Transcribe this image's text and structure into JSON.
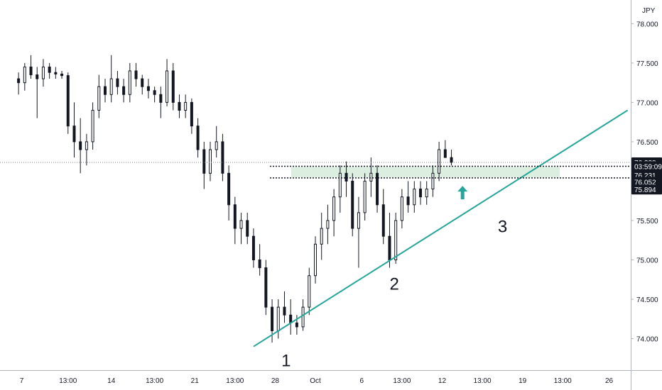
{
  "chart_data": {
    "type": "candlestick",
    "currency": "JPY",
    "ylim": [
      73.6,
      78.3
    ],
    "y_ticks": [
      74.0,
      74.5,
      75.0,
      75.5,
      76.0,
      76.5,
      77.0,
      77.5,
      78.0
    ],
    "y_tick_labels": [
      "74.000",
      "74.500",
      "75.000",
      "75.500",
      "76.000",
      "76.500",
      "77.000",
      "77.500",
      "78.000"
    ],
    "x_tick_labels": [
      "7",
      "13:00",
      "14",
      "13:00",
      "21",
      "13:00",
      "28",
      "Oct",
      "6",
      "13:00",
      "12",
      "13:00",
      "19",
      "13:00",
      "26"
    ],
    "x_tick_positions": [
      0.5,
      8,
      15,
      22,
      28.5,
      35,
      41.5,
      48,
      55.5,
      62,
      68.5,
      75,
      81.5,
      88,
      95.5
    ],
    "x_range": [
      -3,
      99
    ],
    "candles": [
      [
        77.3,
        77.38,
        77.1,
        77.25
      ],
      [
        77.25,
        77.5,
        77.15,
        77.45
      ],
      [
        77.45,
        77.6,
        77.3,
        77.35
      ],
      [
        77.35,
        77.45,
        76.8,
        77.3
      ],
      [
        77.3,
        77.55,
        77.2,
        77.45
      ],
      [
        77.45,
        77.5,
        77.3,
        77.38
      ],
      [
        77.38,
        77.45,
        77.3,
        77.36
      ],
      [
        77.36,
        77.4,
        77.3,
        77.34
      ],
      [
        77.34,
        77.38,
        76.6,
        76.7
      ],
      [
        76.7,
        77.0,
        76.3,
        76.5
      ],
      [
        76.5,
        76.8,
        76.1,
        76.4
      ],
      [
        76.4,
        76.6,
        76.2,
        76.5
      ],
      [
        76.5,
        77.0,
        76.4,
        76.9
      ],
      [
        76.9,
        77.35,
        76.8,
        77.2
      ],
      [
        77.2,
        77.3,
        77.0,
        77.1
      ],
      [
        77.1,
        77.6,
        77.0,
        77.3
      ],
      [
        77.3,
        77.4,
        77.1,
        77.2
      ],
      [
        77.2,
        77.3,
        77.0,
        77.1
      ],
      [
        77.1,
        77.5,
        77.0,
        77.4
      ],
      [
        77.4,
        77.5,
        77.2,
        77.3
      ],
      [
        77.3,
        77.35,
        77.1,
        77.2
      ],
      [
        77.2,
        77.3,
        77.05,
        77.15
      ],
      [
        77.15,
        77.2,
        77.0,
        77.1
      ],
      [
        77.1,
        77.2,
        76.8,
        77.0
      ],
      [
        77.0,
        77.55,
        76.95,
        77.4
      ],
      [
        77.4,
        77.5,
        76.9,
        77.0
      ],
      [
        77.0,
        77.1,
        76.8,
        76.9
      ],
      [
        76.9,
        77.1,
        76.8,
        77.0
      ],
      [
        77.0,
        77.05,
        76.6,
        76.7
      ],
      [
        76.7,
        76.8,
        76.3,
        76.4
      ],
      [
        76.4,
        76.5,
        75.9,
        76.1
      ],
      [
        76.1,
        76.5,
        76.0,
        76.4
      ],
      [
        76.4,
        76.7,
        76.3,
        76.5
      ],
      [
        76.5,
        76.6,
        76.0,
        76.1
      ],
      [
        76.1,
        76.2,
        75.5,
        75.7
      ],
      [
        75.7,
        75.8,
        75.2,
        75.4
      ],
      [
        75.4,
        75.6,
        75.2,
        75.5
      ],
      [
        75.5,
        75.6,
        75.2,
        75.3
      ],
      [
        75.3,
        75.4,
        74.9,
        75.0
      ],
      [
        75.0,
        75.2,
        74.8,
        74.9
      ],
      [
        74.9,
        75.0,
        74.3,
        74.4
      ],
      [
        74.4,
        74.5,
        73.95,
        74.1
      ],
      [
        74.1,
        74.5,
        74.0,
        74.4
      ],
      [
        74.4,
        74.6,
        74.2,
        74.3
      ],
      [
        74.3,
        74.5,
        74.05,
        74.2
      ],
      [
        74.2,
        74.3,
        74.05,
        74.15
      ],
      [
        74.15,
        74.5,
        74.1,
        74.4
      ],
      [
        74.4,
        74.9,
        74.3,
        74.8
      ],
      [
        74.8,
        75.3,
        74.7,
        75.2
      ],
      [
        75.2,
        75.6,
        75.0,
        75.4
      ],
      [
        75.4,
        75.7,
        75.2,
        75.5
      ],
      [
        75.5,
        75.9,
        75.3,
        75.8
      ],
      [
        75.8,
        76.2,
        75.6,
        76.1
      ],
      [
        76.1,
        76.25,
        75.8,
        76.0
      ],
      [
        76.0,
        76.1,
        75.3,
        75.4
      ],
      [
        75.4,
        75.8,
        74.9,
        75.6
      ],
      [
        75.6,
        76.1,
        75.5,
        76.0
      ],
      [
        76.0,
        76.3,
        75.8,
        76.1
      ],
      [
        76.1,
        76.2,
        75.6,
        75.7
      ],
      [
        75.7,
        75.9,
        75.2,
        75.3
      ],
      [
        75.3,
        75.6,
        74.9,
        75.0
      ],
      [
        75.0,
        75.6,
        74.95,
        75.5
      ],
      [
        75.5,
        75.9,
        75.4,
        75.8
      ],
      [
        75.8,
        76.0,
        75.6,
        75.7
      ],
      [
        75.7,
        76.0,
        75.6,
        75.9
      ],
      [
        75.9,
        76.0,
        75.7,
        75.8
      ],
      [
        75.8,
        76.0,
        75.7,
        75.9
      ],
      [
        75.9,
        76.2,
        75.8,
        76.1
      ],
      [
        76.1,
        76.5,
        76.0,
        76.4
      ],
      [
        76.4,
        76.52,
        76.3,
        76.3
      ],
      [
        76.3,
        76.4,
        76.2,
        76.238
      ]
    ],
    "last_price": "76.238",
    "countdown": "03:59:09",
    "level_top": "76.231",
    "level_bottom": "76.052",
    "level_low": "75.894",
    "zone": [
      76.05,
      76.18
    ],
    "trendline": {
      "x": [
        38,
        98.5
      ],
      "y": [
        73.9,
        76.9
      ]
    },
    "wave_labels": [
      "1",
      "2",
      "3"
    ],
    "colors": {
      "candle": "#131722",
      "trendline": "#26a69a",
      "zone": "#cfe8d4",
      "arrow": "#26a69a",
      "label_bg": "#131722",
      "label_text": "#ffffff"
    }
  }
}
